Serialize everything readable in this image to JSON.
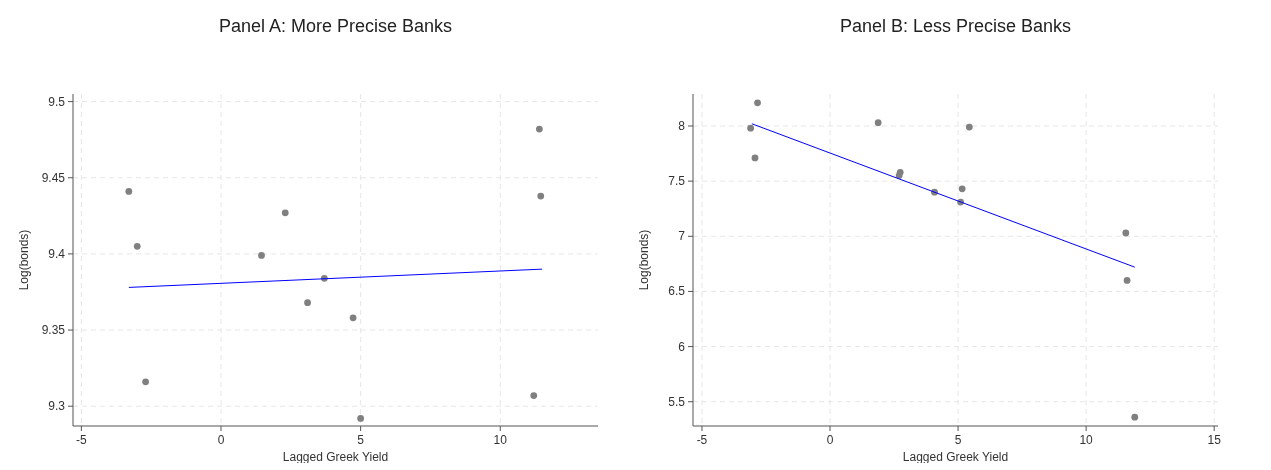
{
  "chart_data": [
    {
      "type": "scatter",
      "title": "Panel A: More Precise Banks",
      "xlabel": "Lagged Greek Yield",
      "ylabel": "Log(bonds)",
      "xlim": [
        -5.3,
        13.5
      ],
      "ylim": [
        9.287,
        9.505
      ],
      "xticks": [
        -5,
        0,
        5,
        10
      ],
      "yticks": [
        9.3,
        9.35,
        9.4,
        9.45,
        9.5
      ],
      "grid": true,
      "marker": "circle",
      "series": [
        {
          "color": "#808080",
          "x": [
            -3.3,
            -3.0,
            -2.7,
            1.45,
            2.3,
            3.1,
            3.7,
            4.73,
            5.0,
            11.2,
            11.4,
            11.45
          ],
          "values": [
            9.441,
            9.405,
            9.316,
            9.399,
            9.427,
            9.368,
            9.384,
            9.358,
            9.292,
            9.307,
            9.482,
            9.438
          ]
        },
        {
          "type": "line",
          "marker": "none",
          "color": "#0000ff",
          "x": [
            -3.3,
            11.5
          ],
          "values": [
            9.378,
            9.39
          ]
        }
      ]
    },
    {
      "type": "scatter",
      "title": "Panel B: Less Precise Banks",
      "xlabel": "Lagged Greek Yield",
      "ylabel": "Log(bonds)",
      "xlim": [
        -5.35,
        15.15
      ],
      "ylim": [
        5.28,
        8.29
      ],
      "xticks": [
        -5,
        0,
        5,
        10,
        15
      ],
      "yticks": [
        5.5,
        6,
        6.5,
        7,
        7.5,
        8
      ],
      "grid": true,
      "marker": "circle",
      "series": [
        {
          "color": "#808080",
          "x": [
            -3.1,
            -2.93,
            -2.83,
            1.88,
            2.7,
            2.74,
            4.08,
            5.1,
            5.16,
            5.44,
            11.55,
            11.6,
            11.9
          ],
          "values": [
            7.98,
            7.71,
            8.21,
            8.03,
            7.55,
            7.58,
            7.4,
            7.31,
            7.43,
            7.99,
            7.03,
            6.6,
            5.36
          ]
        },
        {
          "type": "line",
          "marker": "none",
          "color": "#0000ff",
          "x": [
            -3.05,
            11.9
          ],
          "values": [
            8.02,
            6.72
          ]
        }
      ]
    }
  ]
}
